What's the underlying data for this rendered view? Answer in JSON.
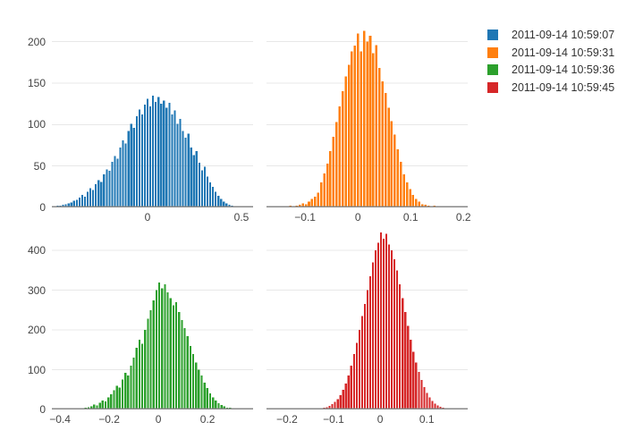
{
  "figure": {
    "background": "#ffffff"
  },
  "axis_style": {
    "tick_color": "#444444",
    "grid_color": "#e8e8e8",
    "line_color": "#888888"
  },
  "legend": {
    "items": [
      {
        "label": "2011-09-14 10:59:07",
        "color": "#1f77b4"
      },
      {
        "label": "2011-09-14 10:59:31",
        "color": "#ff7f0e"
      },
      {
        "label": "2011-09-14 10:59:36",
        "color": "#2ca02c"
      },
      {
        "label": "2011-09-14 10:59:45",
        "color": "#d62728"
      }
    ]
  },
  "chart_data": [
    {
      "type": "histogram",
      "name": "2011-09-14 10:59:07",
      "color": "#1f77b4",
      "position": "top-left",
      "xlim": [
        -0.5095,
        0.5619
      ],
      "ylim": [
        0,
        220
      ],
      "xticks": [
        {
          "v": 0,
          "label": "0"
        },
        {
          "v": 0.5,
          "label": "0.5"
        }
      ],
      "yticks": [
        {
          "v": 0,
          "label": "0"
        },
        {
          "v": 50,
          "label": "50"
        },
        {
          "v": 100,
          "label": "100"
        },
        {
          "v": 150,
          "label": "150"
        },
        {
          "v": 200,
          "label": "200"
        }
      ],
      "ygrid": [
        50,
        100,
        150,
        200
      ],
      "bin_start": -0.5,
      "bin_width": 0.0145,
      "counts": [
        1,
        2,
        2,
        3,
        4,
        5,
        6,
        8,
        9,
        12,
        15,
        13,
        19,
        23,
        21,
        28,
        33,
        31,
        40,
        46,
        44,
        55,
        62,
        59,
        72,
        81,
        77,
        92,
        101,
        96,
        110,
        118,
        112,
        124,
        131,
        122,
        135,
        127,
        133,
        125,
        129,
        120,
        126,
        112,
        117,
        101,
        107,
        92,
        84,
        89,
        72,
        63,
        68,
        54,
        45,
        49,
        37,
        30,
        25,
        19,
        14,
        10,
        7,
        5,
        3,
        2
      ]
    },
    {
      "type": "histogram",
      "name": "2011-09-14 10:59:31",
      "color": "#ff7f0e",
      "position": "top-right",
      "xlim": [
        -0.173,
        0.208
      ],
      "ylim": [
        0,
        220
      ],
      "xticks": [
        {
          "v": -0.1,
          "label": "−0.1"
        },
        {
          "v": 0,
          "label": "0"
        },
        {
          "v": 0.1,
          "label": "0.1"
        },
        {
          "v": 0.2,
          "label": "0.2"
        }
      ],
      "yticks": [],
      "ygrid": [
        50,
        100,
        150,
        200
      ],
      "bin_start": -0.165,
      "bin_width": 0.0058,
      "counts": [
        1,
        0,
        1,
        0,
        1,
        1,
        2,
        1,
        2,
        3,
        5,
        4,
        7,
        10,
        13,
        18,
        30,
        41,
        53,
        68,
        85,
        103,
        122,
        140,
        158,
        172,
        188,
        195,
        210,
        188,
        213,
        200,
        207,
        186,
        196,
        168,
        152,
        138,
        120,
        104,
        88,
        70,
        55,
        40,
        30,
        22,
        15,
        10,
        7,
        4,
        3,
        2,
        1,
        2,
        1,
        1,
        0,
        1,
        0,
        0,
        1,
        0,
        0,
        1,
        0
      ]
    },
    {
      "type": "histogram",
      "name": "2011-09-14 10:59:36",
      "color": "#2ca02c",
      "position": "bottom-left",
      "xlim": [
        -0.433,
        0.385
      ],
      "ylim": [
        0,
        450
      ],
      "xticks": [
        {
          "v": -0.4,
          "label": "−0.4"
        },
        {
          "v": -0.2,
          "label": "−0.2"
        },
        {
          "v": 0,
          "label": "0"
        },
        {
          "v": 0.2,
          "label": "0.2"
        }
      ],
      "yticks": [
        {
          "v": 0,
          "label": "0"
        },
        {
          "v": 100,
          "label": "100"
        },
        {
          "v": 200,
          "label": "200"
        },
        {
          "v": 300,
          "label": "300"
        },
        {
          "v": 400,
          "label": "400"
        }
      ],
      "ygrid": [
        100,
        200,
        300,
        400
      ],
      "bin_start": -0.37,
      "bin_width": 0.0115,
      "counts": [
        1,
        1,
        2,
        1,
        3,
        2,
        4,
        6,
        8,
        12,
        10,
        17,
        23,
        20,
        30,
        38,
        48,
        60,
        55,
        75,
        92,
        86,
        110,
        130,
        155,
        175,
        165,
        200,
        228,
        250,
        275,
        300,
        320,
        305,
        315,
        295,
        280,
        262,
        270,
        245,
        225,
        205,
        185,
        160,
        140,
        118,
        100,
        85,
        68,
        54,
        40,
        30,
        22,
        16,
        11,
        8,
        5,
        4,
        2,
        2,
        1,
        1,
        1,
        1
      ]
    },
    {
      "type": "histogram",
      "name": "2011-09-14 10:59:45",
      "color": "#d62728",
      "position": "bottom-right",
      "xlim": [
        -0.244,
        0.188
      ],
      "ylim": [
        0,
        450
      ],
      "xticks": [
        {
          "v": -0.2,
          "label": "−0.2"
        },
        {
          "v": -0.1,
          "label": "−0.1"
        },
        {
          "v": 0,
          "label": "0"
        },
        {
          "v": 0.1,
          "label": "0.1"
        }
      ],
      "yticks": [],
      "ygrid": [
        100,
        200,
        300,
        400
      ],
      "bin_start": -0.175,
      "bin_width": 0.0058,
      "counts": [
        0,
        1,
        0,
        1,
        1,
        2,
        1,
        2,
        3,
        4,
        6,
        9,
        13,
        19,
        26,
        36,
        50,
        65,
        85,
        110,
        140,
        168,
        200,
        235,
        265,
        300,
        335,
        370,
        400,
        420,
        445,
        430,
        442,
        415,
        400,
        378,
        350,
        315,
        280,
        245,
        210,
        175,
        145,
        118,
        95,
        74,
        56,
        42,
        30,
        21,
        15,
        10,
        7,
        4,
        3,
        2,
        1,
        1,
        0,
        1
      ]
    }
  ]
}
